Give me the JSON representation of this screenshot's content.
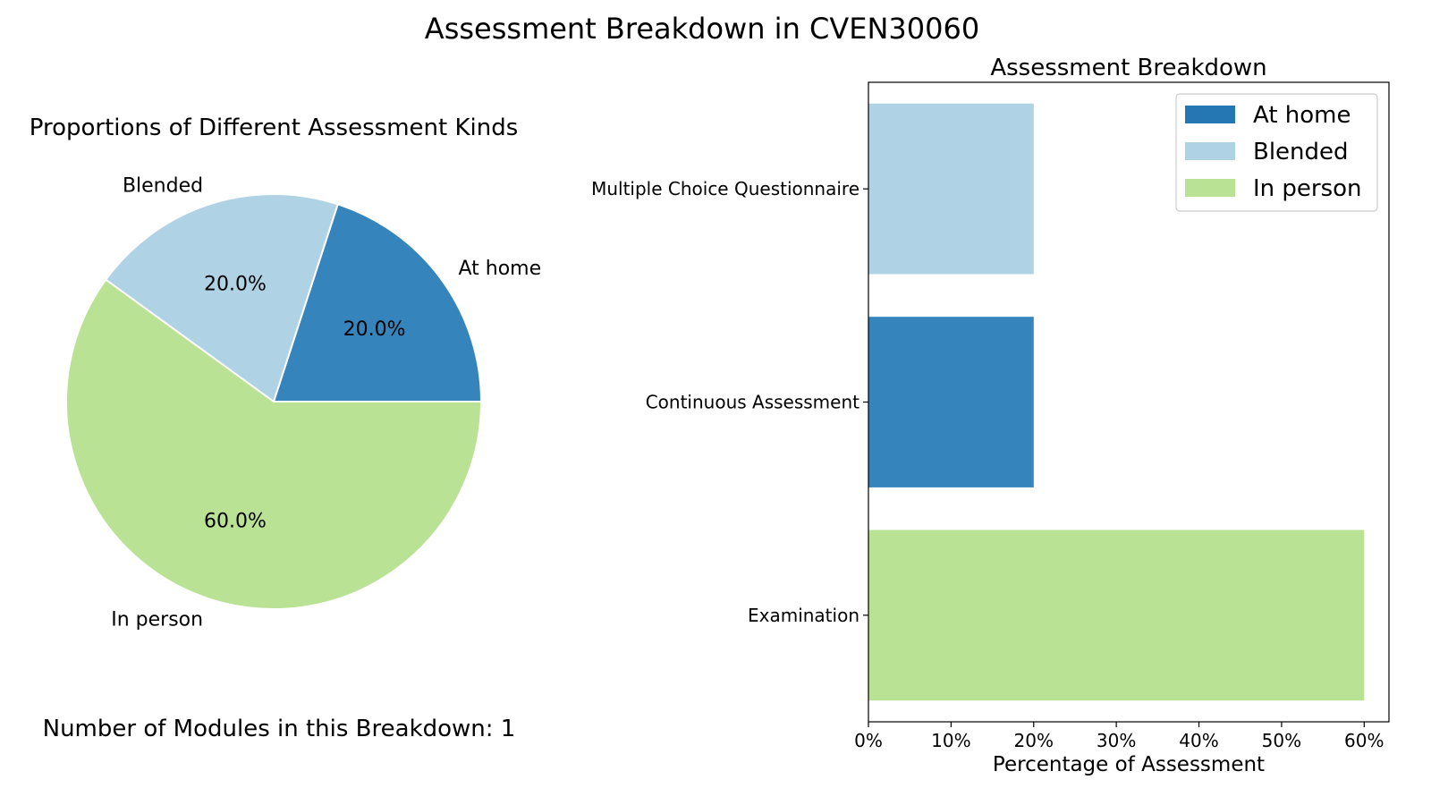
{
  "figure_title": "Assessment Breakdown in CVEN30060",
  "module_count_text": "Number of Modules in this Breakdown: 1",
  "colors": {
    "at_home": "#3584bb",
    "blended": "#afd2e5",
    "in_person": "#bae294",
    "legend_at_home": "#2577b4"
  },
  "chart_data": [
    {
      "type": "pie",
      "title": "Proportions of Different Assessment Kinds",
      "slices": [
        {
          "label": "At home",
          "value": 20.0,
          "pct_label": "20.0%",
          "color_key": "at_home"
        },
        {
          "label": "Blended",
          "value": 20.0,
          "pct_label": "20.0%",
          "color_key": "blended"
        },
        {
          "label": "In person",
          "value": 60.0,
          "pct_label": "60.0%",
          "color_key": "in_person"
        }
      ],
      "start_angle_deg": 0,
      "direction": "counterclockwise"
    },
    {
      "type": "bar",
      "orientation": "horizontal",
      "title": "Assessment Breakdown",
      "xlabel": "Percentage of Assessment",
      "ylabel": "",
      "xlim": [
        0,
        63
      ],
      "xticks": [
        0,
        10,
        20,
        30,
        40,
        50,
        60
      ],
      "xtick_labels": [
        "0%",
        "10%",
        "20%",
        "30%",
        "40%",
        "50%",
        "60%"
      ],
      "categories": [
        "Multiple Choice Questionnaire",
        "Continuous Assessment",
        "Examination"
      ],
      "values": [
        20,
        20,
        60
      ],
      "bar_kind": [
        "Blended",
        "At home",
        "In person"
      ],
      "legend": {
        "position": "top-right",
        "entries": [
          {
            "label": "At home",
            "color_key": "legend_at_home"
          },
          {
            "label": "Blended",
            "color_key": "blended"
          },
          {
            "label": "In person",
            "color_key": "in_person"
          }
        ]
      },
      "grid": false
    }
  ]
}
